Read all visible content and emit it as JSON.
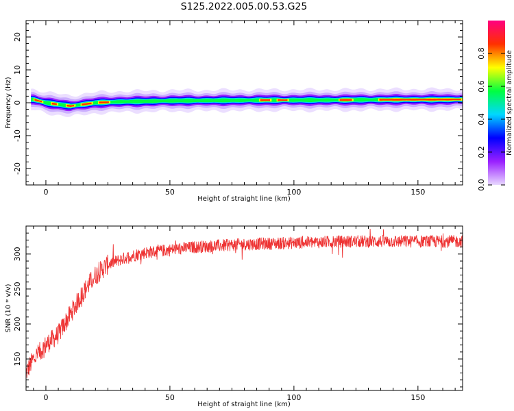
{
  "title": "S125.2022.005.00.53.G25",
  "chart_data": [
    {
      "type": "heatmap",
      "xlabel": "Height of straight line (km)",
      "ylabel": "Frequency (Hz)",
      "xlim": [
        -8,
        168
      ],
      "ylim": [
        -25,
        25
      ],
      "xticks": [
        0,
        50,
        100,
        150
      ],
      "yticks": [
        20,
        10,
        0,
        -10,
        -20
      ],
      "xtick_labels": [
        "0",
        "50",
        "100",
        "150"
      ],
      "ytick_labels": [
        "20",
        "10",
        "0",
        "-10",
        "-20"
      ],
      "ridge_frequency_hz": [
        [
          -5,
          1.0
        ],
        [
          0,
          0.0
        ],
        [
          5,
          -0.5
        ],
        [
          10,
          -1.0
        ],
        [
          15,
          -0.5
        ],
        [
          20,
          0.0
        ],
        [
          30,
          0.3
        ],
        [
          50,
          0.6
        ],
        [
          70,
          0.7
        ],
        [
          90,
          0.8
        ],
        [
          110,
          0.8
        ],
        [
          130,
          0.9
        ],
        [
          168,
          1.0
        ]
      ],
      "high_amplitude_segments_km": [
        [
          -5,
          -1
        ],
        [
          2,
          5
        ],
        [
          8,
          12
        ],
        [
          14,
          19
        ],
        [
          21,
          26
        ],
        [
          86,
          91
        ],
        [
          93,
          98
        ],
        [
          118,
          124
        ],
        [
          134,
          168
        ]
      ],
      "colorbar": {
        "label": "Normalized spectral amplitude",
        "range": [
          0,
          1
        ],
        "ticks": [
          "0.0",
          "0.2",
          "0.4",
          "0.6",
          "0.8"
        ],
        "colors": [
          "#e8d8ff",
          "#9a20ff",
          "#0000ff",
          "#00d8ff",
          "#00ff40",
          "#ffff00",
          "#ff3000",
          "#ff0080"
        ]
      }
    },
    {
      "type": "line",
      "xlabel": "Height of straight line (km)",
      "ylabel": "SNR (10 * v/v)",
      "xlim": [
        -8,
        168
      ],
      "ylim": [
        105,
        340
      ],
      "xticks": [
        0,
        50,
        100,
        150
      ],
      "yticks": [
        150,
        200,
        250,
        300
      ],
      "xtick_labels": [
        "0",
        "50",
        "100",
        "150"
      ],
      "ytick_labels": [
        "150",
        "200",
        "250",
        "300"
      ],
      "color": "#ee3333",
      "trend_x": [
        -8,
        -5,
        0,
        5,
        10,
        15,
        20,
        25,
        30,
        35,
        40,
        50,
        60,
        80,
        100,
        120,
        140,
        168
      ],
      "trend_y": [
        130,
        150,
        170,
        185,
        215,
        245,
        270,
        285,
        292,
        298,
        302,
        306,
        310,
        314,
        316,
        318,
        318,
        318
      ],
      "noise_amplitude": 9
    }
  ]
}
